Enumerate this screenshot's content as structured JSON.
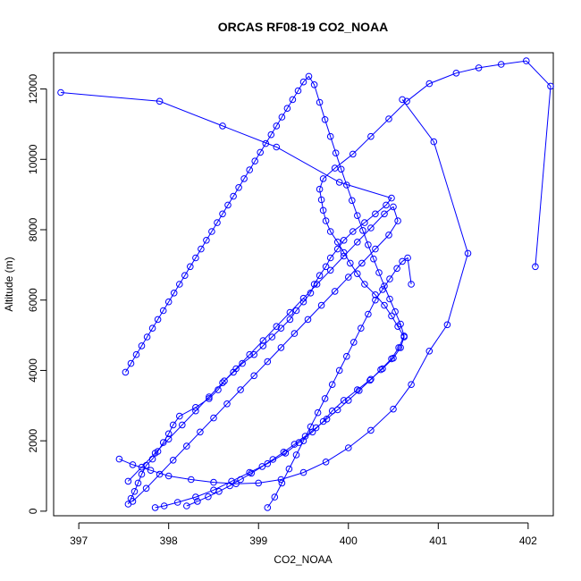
{
  "chart_data": {
    "type": "line",
    "title": "ORCAS RF08-19 CO2_NOAA",
    "xlabel": "CO2_NOAA",
    "ylabel": "Altitude (m)",
    "xlim": [
      396.72,
      402.28
    ],
    "ylim": [
      -130,
      13030
    ],
    "xticks": [
      397,
      398,
      399,
      400,
      401,
      402
    ],
    "yticks": [
      0,
      2000,
      4000,
      6000,
      8000,
      10000,
      12000
    ],
    "grid": false,
    "legend": "none",
    "marker": "open-circle",
    "color": "#0000ff",
    "series": [
      {
        "x": [
          397.55,
          397.58,
          397.62,
          397.66,
          397.7,
          397.75,
          397.82,
          397.88,
          397.94,
          398.0,
          398.05,
          398.12,
          398.3,
          398.45,
          398.55,
          398.62,
          398.72,
          398.82,
          398.95,
          399.05,
          399.15,
          399.25,
          399.35,
          399.42,
          399.5,
          399.58,
          399.62,
          399.68,
          399.75,
          399.8,
          399.88,
          399.95,
          400.05,
          400.18,
          400.3,
          400.42,
          400.48,
          399.9,
          399.2,
          398.6,
          397.9,
          396.8
        ],
        "y": [
          200,
          360,
          560,
          800,
          1050,
          1300,
          1480,
          1700,
          1950,
          2200,
          2450,
          2700,
          2950,
          3200,
          3450,
          3700,
          3950,
          4200,
          4450,
          4700,
          4950,
          5200,
          5450,
          5700,
          5950,
          6200,
          6450,
          6700,
          6950,
          7200,
          7450,
          7700,
          7950,
          8200,
          8450,
          8700,
          8900,
          9350,
          10350,
          10950,
          11650,
          11900
        ]
      },
      {
        "x": [
          397.85,
          397.95,
          398.1,
          398.3,
          398.5,
          398.7,
          398.9,
          399.1,
          399.3,
          399.45,
          399.6,
          399.72,
          399.82,
          399.95,
          400.1,
          400.25,
          400.38,
          400.5,
          400.58,
          400.62,
          400.55,
          400.48,
          400.4,
          400.3,
          400.18,
          400.1,
          400.02,
          399.95,
          399.88,
          399.8,
          399.75,
          399.72,
          399.7,
          399.68,
          399.72,
          399.85,
          400.05,
          400.25,
          400.45,
          400.65,
          400.9,
          401.2,
          401.45,
          401.7,
          401.98,
          402.25,
          402.08
        ],
        "y": [
          100,
          150,
          250,
          400,
          600,
          850,
          1100,
          1350,
          1650,
          1950,
          2250,
          2550,
          2850,
          3150,
          3450,
          3750,
          4050,
          4350,
          4650,
          4950,
          5250,
          5550,
          5850,
          6150,
          6450,
          6750,
          7050,
          7350,
          7650,
          7950,
          8250,
          8550,
          8850,
          9150,
          9450,
          9750,
          10150,
          10650,
          11150,
          11650,
          12150,
          12450,
          12600,
          12700,
          12800,
          12080,
          6950
        ]
      },
      {
        "x": [
          398.2,
          398.32,
          398.44,
          398.56,
          398.68,
          398.8,
          398.92,
          399.04,
          399.16,
          399.28,
          399.4,
          399.52,
          399.64,
          399.76,
          399.88,
          400.0,
          400.12,
          400.24,
          400.36,
          400.48,
          400.56,
          400.62,
          400.58,
          400.52,
          400.46,
          400.4,
          400.34,
          400.28,
          400.22,
          400.16,
          400.1,
          400.04,
          399.98,
          399.92,
          399.86,
          399.8,
          399.74,
          399.68,
          399.62,
          399.56,
          399.5,
          399.44,
          399.38,
          399.32,
          399.26,
          399.2,
          399.14,
          399.08,
          399.02,
          398.96,
          398.9,
          398.84,
          398.78,
          398.72,
          398.66,
          398.6,
          398.54,
          398.48,
          398.42,
          398.36,
          398.3,
          398.24,
          398.18,
          398.12,
          398.06,
          398.0,
          397.94,
          397.88,
          397.82,
          397.76,
          397.7,
          397.64,
          397.58,
          397.52
        ],
        "y": [
          150,
          280,
          410,
          560,
          720,
          900,
          1080,
          1270,
          1470,
          1680,
          1900,
          2130,
          2370,
          2620,
          2880,
          3150,
          3430,
          3720,
          4020,
          4330,
          4650,
          4980,
          5320,
          5670,
          6030,
          6400,
          6780,
          7170,
          7570,
          7980,
          8400,
          8830,
          9270,
          9720,
          10180,
          10650,
          11130,
          11620,
          12120,
          12360,
          12200,
          11950,
          11700,
          11450,
          11200,
          10950,
          10700,
          10450,
          10200,
          9950,
          9700,
          9450,
          9200,
          8950,
          8700,
          8450,
          8200,
          7950,
          7700,
          7450,
          7200,
          6950,
          6700,
          6450,
          6200,
          5950,
          5700,
          5450,
          5200,
          4950,
          4700,
          4450,
          4200,
          3950
        ]
      },
      {
        "x": [
          397.45,
          397.6,
          397.8,
          398.0,
          398.25,
          398.5,
          398.75,
          399.0,
          399.25,
          399.5,
          399.75,
          400.0,
          400.25,
          400.5,
          400.7,
          400.9,
          401.1,
          401.33,
          400.95,
          400.6
        ],
        "y": [
          1480,
          1320,
          1160,
          1000,
          900,
          820,
          780,
          800,
          900,
          1100,
          1400,
          1800,
          2300,
          2900,
          3600,
          4550,
          5300,
          7330,
          10500,
          11700
        ]
      },
      {
        "x": [
          399.1,
          399.18,
          399.26,
          399.34,
          399.42,
          399.5,
          399.58,
          399.66,
          399.74,
          399.82,
          399.9,
          399.98,
          400.06,
          400.14,
          400.22,
          400.3,
          400.38,
          400.46,
          400.54,
          400.6,
          400.66,
          400.7
        ],
        "y": [
          100,
          400,
          800,
          1200,
          1600,
          2000,
          2400,
          2800,
          3200,
          3600,
          4000,
          4400,
          4800,
          5200,
          5600,
          6000,
          6300,
          6600,
          6900,
          7100,
          7200,
          6450
        ]
      },
      {
        "x": [
          397.6,
          397.75,
          397.9,
          398.05,
          398.2,
          398.35,
          398.5,
          398.65,
          398.8,
          398.95,
          399.1,
          399.25,
          399.4,
          399.55,
          399.7,
          399.85,
          400.0,
          400.15,
          400.3,
          400.45,
          400.55,
          400.5,
          400.4,
          400.25,
          400.1,
          399.95,
          399.8,
          399.65,
          399.5,
          399.35,
          399.2,
          399.05,
          398.9,
          398.75,
          398.6,
          398.45,
          398.3,
          398.15,
          398.0,
          397.85,
          397.7,
          397.55
        ],
        "y": [
          280,
          650,
          1050,
          1450,
          1850,
          2250,
          2650,
          3050,
          3450,
          3850,
          4250,
          4650,
          5050,
          5450,
          5850,
          6250,
          6650,
          7050,
          7450,
          7850,
          8250,
          8650,
          8450,
          8050,
          7650,
          7250,
          6850,
          6450,
          6050,
          5650,
          5250,
          4850,
          4450,
          4050,
          3650,
          3250,
          2850,
          2450,
          2050,
          1650,
          1250,
          850
        ]
      }
    ]
  }
}
